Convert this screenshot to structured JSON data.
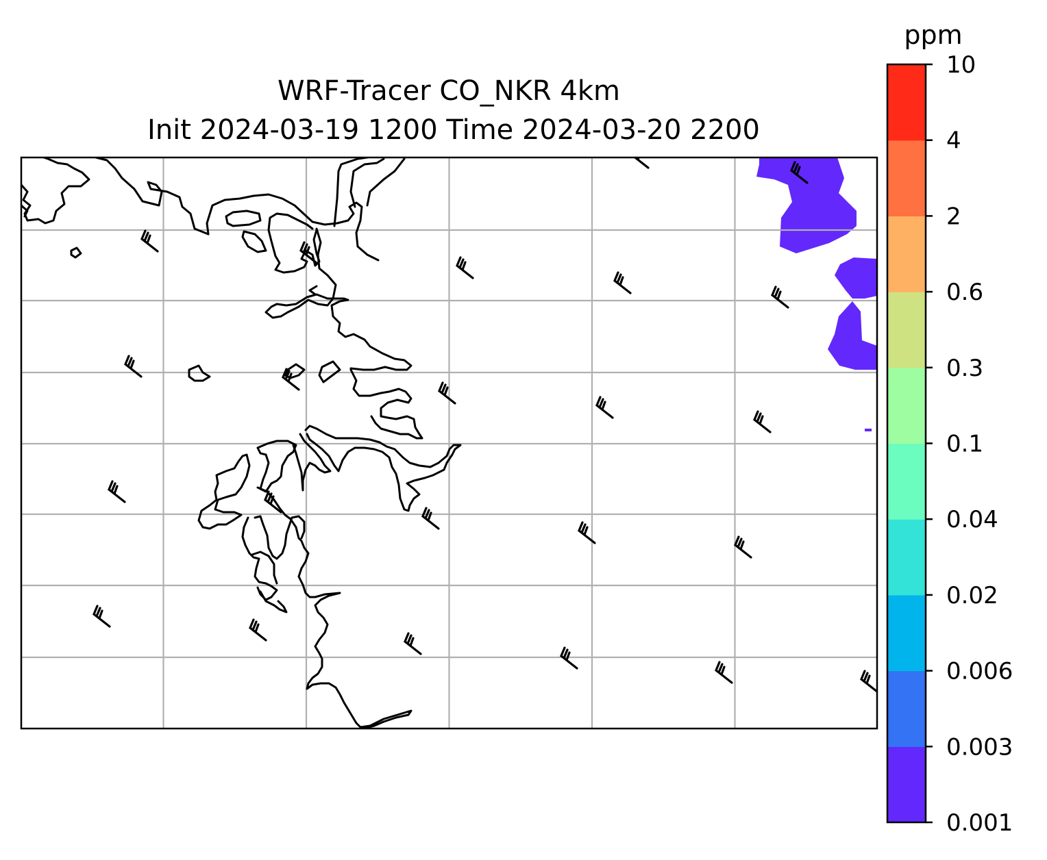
{
  "title": {
    "line1": "WRF-Tracer CO_NKR 4km",
    "line2": "Init 2024-03-19 1200 Time 2024-03-20 2200"
  },
  "colorbar": {
    "unit": "ppm",
    "levels": [
      "0.001",
      "0.003",
      "0.006",
      "0.02",
      "0.04",
      "0.1",
      "0.3",
      "0.6",
      "2",
      "4",
      "10"
    ],
    "colors": [
      "#6328fb",
      "#3373f4",
      "#01b5ec",
      "#33e3d8",
      "#6bfdbf",
      "#9dfda0",
      "#cee282",
      "#feb163",
      "#ff7141",
      "#ff2a17"
    ]
  },
  "map": {
    "grid": true,
    "plume_color": "#6328fb"
  }
}
